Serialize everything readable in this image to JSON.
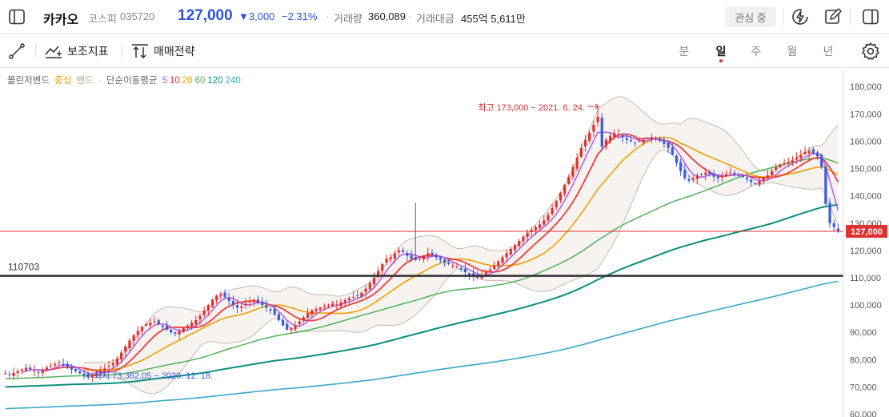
{
  "header": {
    "stock_name": "카카오",
    "market": "코스피",
    "code": "035720",
    "price": "127,000",
    "change": "▼3,000",
    "change_pct": "−2.31%",
    "volume_label": "거래량",
    "volume": "360,089",
    "amount_label": "거래대금",
    "amount": "455억 5,611만",
    "watch_button": "관심 중",
    "icons": [
      "sidebar-left-icon",
      "lightning-icon",
      "edit-icon",
      "sidebar-right-icon"
    ]
  },
  "toolbar": {
    "indicator_label": "보조지표",
    "strategy_label": "매매전략",
    "periods": [
      "분",
      "일",
      "주",
      "월",
      "년"
    ],
    "active_period": "일",
    "icons": [
      "draw-line-icon",
      "indicator-icon",
      "strategy-icon",
      "settings-icon"
    ]
  },
  "legend": {
    "bollinger": "볼린저밴드",
    "center": "중심",
    "band": "밴드",
    "ma_label": "단순이동평균",
    "ma_periods": [
      {
        "label": "5",
        "color": "#b05ce6"
      },
      {
        "label": "10",
        "color": "#f03e3e"
      },
      {
        "label": "20",
        "color": "#f59f00"
      },
      {
        "label": "60",
        "color": "#51b35a"
      },
      {
        "label": "120",
        "color": "#0b8f7a"
      },
      {
        "label": "240",
        "color": "#3ba8c8"
      }
    ]
  },
  "chart_data": {
    "type": "candlestick",
    "y_ticks": [
      180000,
      170000,
      160000,
      150000,
      140000,
      130000,
      120000,
      110000,
      100000,
      90000,
      80000,
      70000,
      60000
    ],
    "y_tick_labels": [
      "180,000",
      "170,000",
      "160,000",
      "150,000",
      "140,000",
      "130,000",
      "120,000",
      "110,000",
      "100,000",
      "90,000",
      "80,000",
      "70,000",
      "60,000"
    ],
    "ylim": [
      59000,
      186500
    ],
    "current_price": 127000,
    "current_price_label": "127,000",
    "horizontal_line": {
      "value": 110703,
      "label": "110703"
    },
    "max_annotation": "최고 173,000 − 2021. 6. 24.",
    "min_annotation": "최저 73,362.05 − 2020. 12. 18.",
    "colors": {
      "up": "#e03131",
      "down": "#3b5bdb",
      "band_fill": "#f7f3f1",
      "band_line": "#c9b8b0",
      "price_line": "#e03131",
      "hline": "#333333"
    },
    "closes": [
      75000,
      74500,
      75200,
      75800,
      76400,
      77000,
      76500,
      76000,
      75500,
      76200,
      77100,
      77800,
      78400,
      79000,
      78000,
      77200,
      76400,
      75800,
      75000,
      74300,
      73600,
      74400,
      75200,
      76000,
      76800,
      77600,
      78800,
      80400,
      82600,
      84800,
      87000,
      89000,
      90500,
      92000,
      93000,
      93500,
      94000,
      93000,
      92000,
      91000,
      90000,
      89500,
      90500,
      91500,
      92500,
      93500,
      94500,
      96000,
      98000,
      100000,
      102000,
      103500,
      104000,
      103000,
      101500,
      100000,
      99000,
      99500,
      100500,
      101500,
      102000,
      101000,
      100000,
      99000,
      98000,
      96500,
      94500,
      92500,
      91000,
      91500,
      92500,
      94000,
      95500,
      97000,
      98000,
      98500,
      99000,
      99500,
      100000,
      100500,
      100200,
      101000,
      101800,
      102500,
      103000,
      103500,
      104500,
      106000,
      108000,
      110000,
      112500,
      115000,
      117000,
      117500,
      119000,
      120000,
      119500,
      118000,
      117000,
      116500,
      117000,
      118000,
      119000,
      118500,
      117500,
      116500,
      115500,
      115000,
      114500,
      114000,
      113000,
      112000,
      111000,
      110500,
      110000,
      111000,
      112000,
      113000,
      114500,
      116000,
      117500,
      119000,
      120500,
      122000,
      123500,
      125000,
      126500,
      127500,
      128500,
      129500,
      131000,
      133000,
      135500,
      138000,
      141000,
      144000,
      147000,
      150500,
      154000,
      157500,
      160500,
      163000,
      166000,
      169000,
      158000,
      160500,
      162000,
      163000,
      162500,
      161500,
      160500,
      160000,
      159500,
      160000,
      160500,
      161000,
      161500,
      161000,
      160000,
      159000,
      157500,
      155000,
      152000,
      149000,
      146500,
      145500,
      146500,
      147500,
      148000,
      148500,
      148000,
      147000,
      146500,
      147000,
      148000,
      148500,
      148000,
      147500,
      147000,
      146000,
      145000,
      144500,
      145500,
      146500,
      147500,
      149000,
      150500,
      151500,
      152000,
      152500,
      153000,
      154000,
      155000,
      156000,
      156500,
      155500,
      154500,
      150500,
      137000,
      130000,
      128500,
      127000
    ]
  }
}
